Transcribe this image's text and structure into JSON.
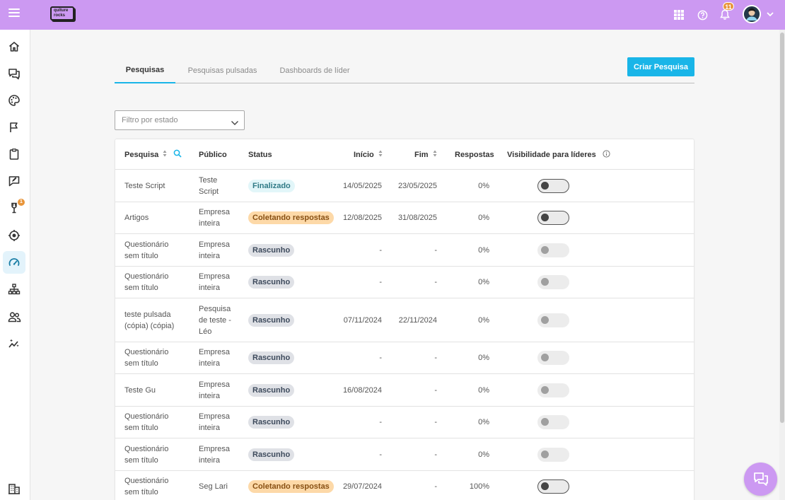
{
  "header": {
    "logo_text": "qulture rocks",
    "notifications_count": "11",
    "icons": [
      "menu-icon",
      "apps-grid-icon",
      "help-icon",
      "bell-icon",
      "avatar",
      "chevron-down-icon"
    ],
    "brand_color": "#cc99f2"
  },
  "sidebar": {
    "items": [
      {
        "icon": "home-icon"
      },
      {
        "icon": "chat-icon"
      },
      {
        "icon": "palette-icon"
      },
      {
        "icon": "flag-icon"
      },
      {
        "icon": "clipboard-icon"
      },
      {
        "icon": "feedback-icon",
        "badge": "1"
      },
      {
        "icon": "trophy-icon"
      },
      {
        "icon": "target-icon"
      },
      {
        "icon": "gauge-icon",
        "active": true
      },
      {
        "icon": "org-chart-icon"
      },
      {
        "icon": "people-icon"
      },
      {
        "icon": "sparkle-chart-icon"
      },
      {
        "icon": "building-icon"
      }
    ]
  },
  "tabs": [
    {
      "label": "Pesquisas",
      "active": true
    },
    {
      "label": "Pesquisas pulsadas",
      "active": false
    },
    {
      "label": "Dashboards de líder",
      "active": false
    }
  ],
  "create_button": "Criar Pesquisa",
  "filter": {
    "placeholder": "Filtro por estado"
  },
  "table": {
    "columns": {
      "pesquisa": "Pesquisa",
      "publico": "Público",
      "status": "Status",
      "inicio": "Início",
      "fim": "Fim",
      "respostas": "Respostas",
      "visibilidade": "Visibilidade para líderes"
    },
    "rows": [
      {
        "name": "Teste Script",
        "audience": "Teste Script",
        "status": "Finalizado",
        "status_type": "finalizado",
        "start": "14/05/2025",
        "end": "23/05/2025",
        "responses": "0%",
        "visible": true
      },
      {
        "name": "Artigos",
        "audience": "Empresa inteira",
        "status": "Coletando respostas",
        "status_type": "coletando",
        "start": "12/08/2025",
        "end": "31/08/2025",
        "responses": "0%",
        "visible": true
      },
      {
        "name": "Questionário sem título",
        "audience": "Empresa inteira",
        "status": "Rascunho",
        "status_type": "rascunho",
        "start": "-",
        "end": "-",
        "responses": "0%",
        "visible": false
      },
      {
        "name": "Questionário sem título",
        "audience": "Empresa inteira",
        "status": "Rascunho",
        "status_type": "rascunho",
        "start": "-",
        "end": "-",
        "responses": "0%",
        "visible": false
      },
      {
        "name": "teste pulsada (cópia) (cópia)",
        "audience": "Pesquisa de teste - Léo",
        "status": "Rascunho",
        "status_type": "rascunho",
        "start": "07/11/2024",
        "end": "22/11/2024",
        "responses": "0%",
        "visible": false
      },
      {
        "name": "Questionário sem título",
        "audience": "Empresa inteira",
        "status": "Rascunho",
        "status_type": "rascunho",
        "start": "-",
        "end": "-",
        "responses": "0%",
        "visible": false
      },
      {
        "name": "Teste Gu",
        "audience": "Empresa inteira",
        "status": "Rascunho",
        "status_type": "rascunho",
        "start": "16/08/2024",
        "end": "-",
        "responses": "0%",
        "visible": false
      },
      {
        "name": "Questionário sem título",
        "audience": "Empresa inteira",
        "status": "Rascunho",
        "status_type": "rascunho",
        "start": "-",
        "end": "-",
        "responses": "0%",
        "visible": false
      },
      {
        "name": "Questionário sem título",
        "audience": "Empresa inteira",
        "status": "Rascunho",
        "status_type": "rascunho",
        "start": "-",
        "end": "-",
        "responses": "0%",
        "visible": false
      },
      {
        "name": "Questionário sem título",
        "audience": "Seg Lari",
        "status": "Coletando respostas",
        "status_type": "coletando",
        "start": "29/07/2024",
        "end": "-",
        "responses": "100%",
        "visible": true
      }
    ]
  },
  "accent_color": "#19b5e8"
}
